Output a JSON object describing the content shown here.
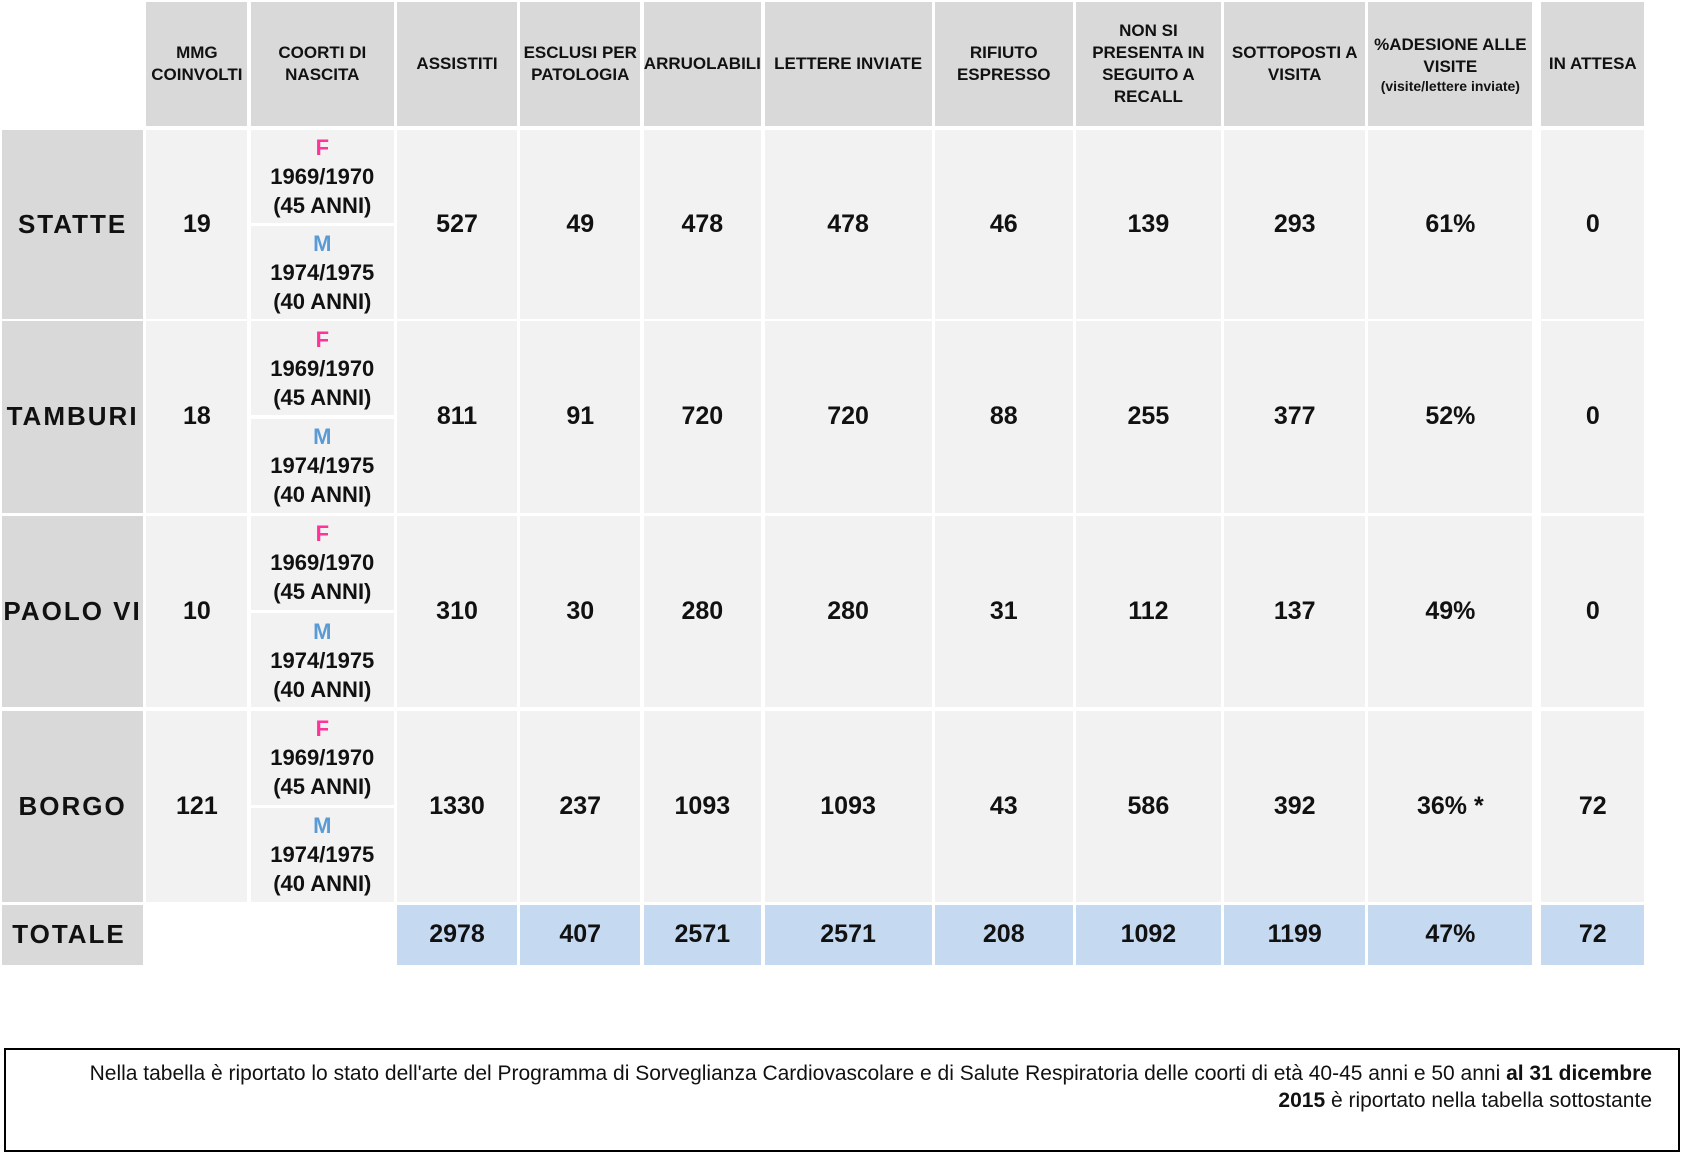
{
  "table": {
    "headers": [
      "MMG COINVOLTI",
      "COORTI DI NASCITA",
      "ASSISTITI",
      "ESCLUSI PER PATOLOGIA",
      "ARRUOLABILI",
      "LETTERE INVIATE",
      "RIFIUTO ESPRESSO",
      "NON SI PRESENTA IN SEGUITO A RECALL",
      "SOTTOPOSTI A VISITA",
      "%ADESIONE ALLE VISITE",
      "IN ATTESA"
    ],
    "adesione_sub": "(visite/lettere inviate)",
    "rows": [
      {
        "name": "STATTE",
        "mmg": "19",
        "cohorts": [
          {
            "sex": "F",
            "years": "1969/1970",
            "age": "(45 ANNI)"
          },
          {
            "sex": "M",
            "years": "1974/1975",
            "age": "(40 ANNI)"
          }
        ],
        "values": [
          "527",
          "49",
          "478",
          "478",
          "46",
          "139",
          "293",
          "61%",
          "0"
        ]
      },
      {
        "name": "TAMBURI",
        "mmg": "18",
        "cohorts": [
          {
            "sex": "F",
            "years": "1969/1970",
            "age": "(45 ANNI)"
          },
          {
            "sex": "M",
            "years": "1974/1975",
            "age": "(40 ANNI)"
          }
        ],
        "values": [
          "811",
          "91",
          "720",
          "720",
          "88",
          "255",
          "377",
          "52%",
          "0"
        ]
      },
      {
        "name": "PAOLO VI",
        "mmg": "10",
        "cohorts": [
          {
            "sex": "F",
            "years": "1969/1970",
            "age": "(45 ANNI)"
          },
          {
            "sex": "M",
            "years": "1974/1975",
            "age": "(40 ANNI)"
          }
        ],
        "values": [
          "310",
          "30",
          "280",
          "280",
          "31",
          "112",
          "137",
          "49%",
          "0"
        ]
      },
      {
        "name": "BORGO",
        "mmg": "121",
        "cohorts": [
          {
            "sex": "F",
            "years": "1969/1970",
            "age": "(45 ANNI)"
          },
          {
            "sex": "M",
            "years": "1974/1975",
            "age": "(40 ANNI)"
          }
        ],
        "values": [
          "1330",
          "237",
          "1093",
          "1093",
          "43",
          "586",
          "392",
          "36% *",
          "72"
        ]
      }
    ],
    "total": {
      "label": "TOTALE",
      "values": [
        "2978",
        "407",
        "2571",
        "2571",
        "208",
        "1092",
        "1199",
        "47%",
        "72"
      ]
    }
  },
  "note": {
    "text_1": "Nella tabella è riportato lo stato dell'arte del Programma di Sorveglianza Cardiovascolare e di Salute Respiratoria delle coorti di età 40-45 anni e 50 anni ",
    "bold": "al 31 dicembre 2015",
    "text_2": " è riportato nella tabella sottostante"
  }
}
